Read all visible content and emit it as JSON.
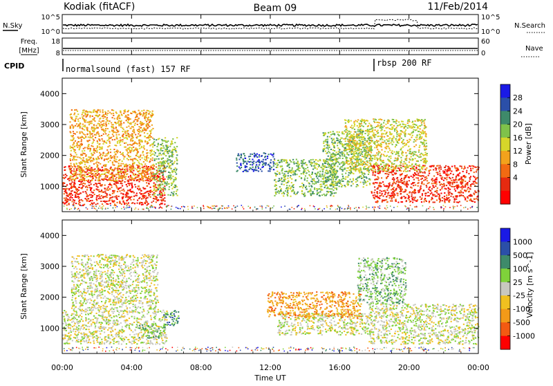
{
  "header": {
    "station": "Kodiak (fitACF)",
    "beam": "Beam 09",
    "date": "11/Feb/2014"
  },
  "strips": {
    "nsky_label": "N.Sky",
    "nsky_ticks": [
      "10^5",
      "10^0"
    ],
    "nsearch_label": "N.Search",
    "nsearch_ticks": [
      "10^5",
      "10^0"
    ],
    "freq_label_line1": "Freq.",
    "freq_label_line2": "[MHz]",
    "freq_ticks": [
      "18",
      "8"
    ],
    "nave_label": "Nave",
    "nave_ticks": [
      "60",
      "0"
    ],
    "cpid_label": "CPID",
    "cpid_segments": [
      {
        "label": "normalsound (fast) 157 RF",
        "start_hour": 0
      },
      {
        "label": "rbsp 200 RF",
        "start_hour": 18.0
      }
    ]
  },
  "colors": {
    "power": [
      "#1a1ae6",
      "#2b4fa8",
      "#3e8a6a",
      "#7fc24a",
      "#d6d62a",
      "#f2a21c",
      "#f26a12",
      "#e62a10",
      "#ff0000"
    ],
    "velocity": [
      "#1a1ae6",
      "#2b4fa8",
      "#3e8a6a",
      "#7fd23a",
      "#c8c8c0",
      "#f0c020",
      "#f29a18",
      "#f25a12",
      "#ff0000"
    ],
    "ground_scatter": "#c8c8c0"
  },
  "chart_data": [
    {
      "type": "heatmap",
      "name": "power",
      "title": "",
      "xlabel": "Time UT",
      "ylabel": "Slant Range [km]",
      "xlim": [
        0,
        24
      ],
      "ylim": [
        180,
        4500
      ],
      "x_ticks": [
        "00:00",
        "04:00",
        "08:00",
        "12:00",
        "16:00",
        "20:00",
        "00:00"
      ],
      "y_ticks": [
        1000,
        2000,
        3000,
        4000
      ],
      "colorbar_label": "Power [dB]",
      "colorbar_ticks": [
        "28",
        "24",
        "20",
        "16",
        "12",
        "8",
        "4"
      ],
      "regions": [
        {
          "t0": 0.0,
          "t1": 5.9,
          "r0": 400,
          "r1": 1700,
          "level": 7
        },
        {
          "t0": 0.4,
          "t1": 5.2,
          "r0": 1200,
          "r1": 3500,
          "level": 5
        },
        {
          "t0": 5.2,
          "t1": 6.6,
          "r0": 700,
          "r1": 2600,
          "level": 3
        },
        {
          "t0": 10.0,
          "t1": 12.2,
          "r0": 1500,
          "r1": 2100,
          "level": 1
        },
        {
          "t0": 12.2,
          "t1": 15.8,
          "r0": 700,
          "r1": 1900,
          "level": 3
        },
        {
          "t0": 15.0,
          "t1": 17.8,
          "r0": 1000,
          "r1": 2800,
          "level": 3
        },
        {
          "t0": 17.8,
          "t1": 24.0,
          "r0": 500,
          "r1": 1700,
          "level": 7
        },
        {
          "t0": 16.2,
          "t1": 21.0,
          "r0": 1500,
          "r1": 3200,
          "level": 4
        }
      ]
    },
    {
      "type": "heatmap",
      "name": "velocity",
      "title": "",
      "xlabel": "Time UT",
      "ylabel": "Slant Range [km]",
      "xlim": [
        0,
        24
      ],
      "ylim": [
        180,
        4500
      ],
      "x_ticks": [
        "00:00",
        "04:00",
        "08:00",
        "12:00",
        "16:00",
        "20:00",
        "00:00"
      ],
      "y_ticks": [
        1000,
        2000,
        3000,
        4000
      ],
      "colorbar_label": "Velocity [m s^-1]",
      "colorbar_ticks": [
        "1000",
        "500",
        "100",
        "25",
        "-25",
        "-100",
        "-500",
        "-1000"
      ],
      "regions": [
        {
          "t0": 0.0,
          "t1": 6.0,
          "r0": 500,
          "r1": 1600,
          "level": 4
        },
        {
          "t0": 0.5,
          "t1": 5.5,
          "r0": 1600,
          "r1": 3400,
          "level": 4
        },
        {
          "t0": 4.4,
          "t1": 5.9,
          "r0": 700,
          "r1": 1150,
          "level": 3
        },
        {
          "t0": 5.8,
          "t1": 6.7,
          "r0": 1100,
          "r1": 1600,
          "level": 2
        },
        {
          "t0": 12.4,
          "t1": 17.6,
          "r0": 800,
          "r1": 1500,
          "level": 4
        },
        {
          "t0": 11.8,
          "t1": 17.2,
          "r0": 1350,
          "r1": 2200,
          "level": 6
        },
        {
          "t0": 17.6,
          "t1": 24.0,
          "r0": 500,
          "r1": 1800,
          "level": 4
        },
        {
          "t0": 17.0,
          "t1": 19.8,
          "r0": 1800,
          "r1": 3300,
          "level": 3
        }
      ]
    }
  ],
  "axis": {
    "xlabel": "Time UT"
  }
}
